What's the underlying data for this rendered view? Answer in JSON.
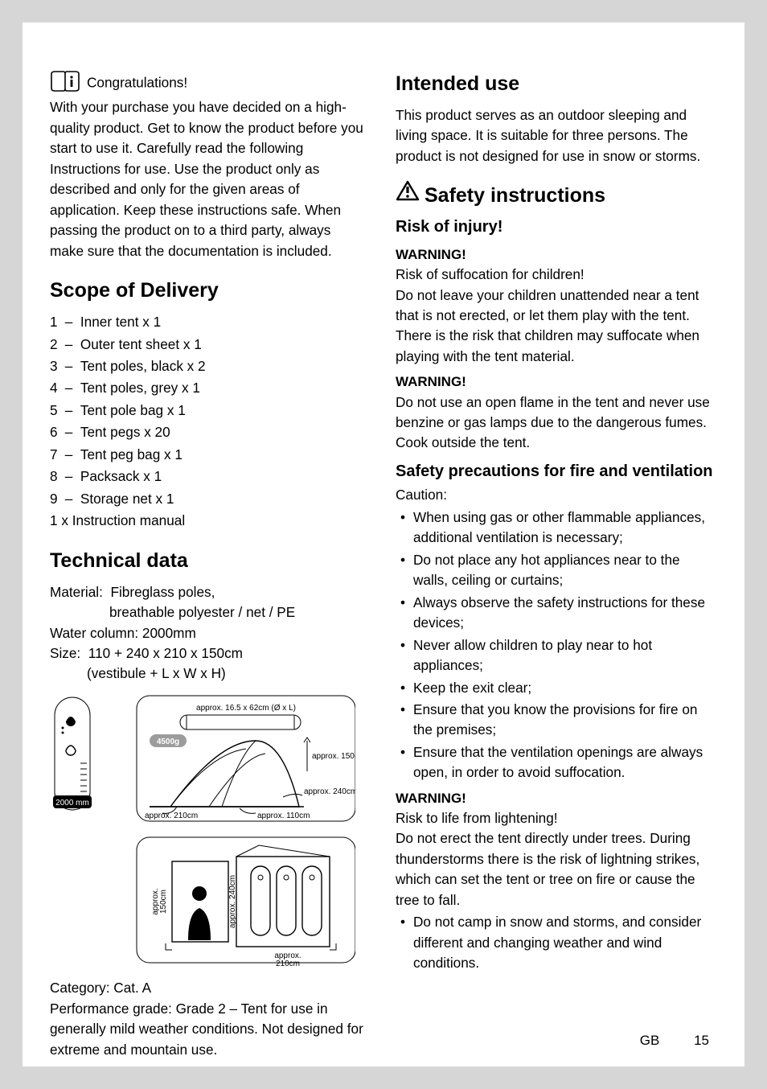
{
  "intro": {
    "congrats": "Congratulations!",
    "body": "With your purchase you have decided on a high-quality product. Get to know the product before you start to use it. Carefully read the following Instructions for use. Use the product only as described and only for the given areas of application. Keep these instructions safe. When passing the product on to a third party, always make sure that the documentation is included."
  },
  "scope": {
    "heading": "Scope of Delivery",
    "items": [
      {
        "n": "1",
        "t": "Inner tent x 1"
      },
      {
        "n": "2",
        "t": "Outer tent sheet x 1"
      },
      {
        "n": "3",
        "t": "Tent poles, black x 2"
      },
      {
        "n": "4",
        "t": "Tent poles, grey x 1"
      },
      {
        "n": "5",
        "t": "Tent pole bag x 1"
      },
      {
        "n": "6",
        "t": "Tent pegs x 20"
      },
      {
        "n": "7",
        "t": "Tent peg bag x 1"
      },
      {
        "n": "8",
        "t": "Packsack x 1"
      },
      {
        "n": "9",
        "t": "Storage net x 1"
      }
    ],
    "extra": "1 x Instruction manual"
  },
  "tech": {
    "heading": "Technical data",
    "material_label": "Material:",
    "material_1": "Fibreglass poles,",
    "material_2": "breathable polyester / net / PE",
    "water": "Water column: 2000mm",
    "size_label": "Size:",
    "size_1": "110 + 240 x 210 x 150cm",
    "size_2": "(vestibule + L x W x H)",
    "category": "Category: Cat. A",
    "perf": "Performance grade: Grade 2 – Tent for use in generally mild weather conditions. Not designed for extreme and mountain use."
  },
  "diagram": {
    "stroke": "#000000",
    "thin": 1,
    "bag_label": "approx. 16.5 x 62cm (Ø x L)",
    "weight_badge": "4500g",
    "weight_badge_bg": "#9c9c9c",
    "column_label": "2000 mm",
    "h_label": "approx. 150cm",
    "l_label": "approx. 240cm",
    "w_label": "approx. 210cm",
    "vest_label": "approx. 110cm",
    "plan_h": "approx.\n150cm",
    "plan_l": "approx. 240cm",
    "plan_w": "approx.\n210cm",
    "label_font": 10
  },
  "intended": {
    "heading": "Intended use",
    "body": "This product serves as an outdoor sleeping and living space. It is suitable for three persons. The product is not designed for use in snow or storms."
  },
  "safety": {
    "heading": "Safety instructions",
    "risk_heading": "Risk of injury!",
    "w1_label": "WARNING!",
    "w1_lead": "Risk of suffocation for children!",
    "w1_body": "Do not leave your children unattended near a tent that is not erected, or let them play with the tent. There is the risk that children may suffocate when playing with the tent material.",
    "w2_label": "WARNING!",
    "w2_body": "Do not use an open flame in the tent and never use benzine or gas lamps due to the dangerous fumes. Cook outside the tent.",
    "fire_heading": "Safety precautions for fire and ventilation",
    "caution": "Caution:",
    "bullets": [
      "When using gas or other flammable appliances, additional ventilation is necessary;",
      "Do not place any hot appliances near to the walls, ceiling or curtains;",
      "Always observe the safety instructions for these devices;",
      "Never allow children to play near to hot appliances;",
      "Keep the exit clear;",
      "Ensure that you know the provisions for fire on the premises;",
      "Ensure that the ventilation openings are always open, in order to avoid suffocation."
    ],
    "w3_label": "WARNING!",
    "w3_lead": "Risk to life from lightening!",
    "w3_body": "Do not erect the tent directly under trees. During thunderstorms there is the risk of lightning strikes, which can set the tent or tree on fire or cause the tree to fall.",
    "w3_bullet": "Do not camp in snow and storms, and consider different and changing weather and wind conditions."
  },
  "footer": {
    "lang": "GB",
    "page": "15"
  }
}
